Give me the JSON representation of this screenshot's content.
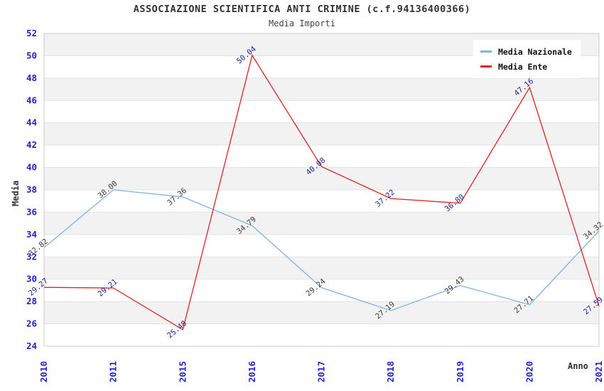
{
  "chart_data": {
    "type": "line",
    "title": "ASSOCIAZIONE SCIENTIFICA ANTI CRIMINE (c.f.94136400366)",
    "subtitle": "Media Importi",
    "xlabel": "Anno",
    "ylabel": "Media",
    "categories": [
      "2010",
      "2011",
      "2015",
      "2016",
      "2017",
      "2018",
      "2019",
      "2020",
      "2021"
    ],
    "series": [
      {
        "name": "Media Nazionale",
        "color": "#7FB2E5",
        "label_color": "#3a3a3a",
        "values": [
          32.82,
          38.0,
          37.36,
          34.79,
          29.24,
          27.19,
          29.43,
          27.71,
          34.32
        ]
      },
      {
        "name": "Media Ente",
        "color": "#E32222",
        "label_color": "#22229B",
        "values": [
          29.27,
          29.21,
          25.48,
          50.04,
          40.08,
          37.22,
          36.8,
          47.16,
          27.59
        ]
      }
    ],
    "ylim": [
      24,
      52
    ],
    "ytick_step": 2,
    "grid": true,
    "band_fill": "#f2f2f2",
    "grid_color": "#e3e3e3",
    "border_color": "#cccccc",
    "tick_color": "#2222cc",
    "legend_position": "top-right",
    "value_label_decimals": 2
  }
}
